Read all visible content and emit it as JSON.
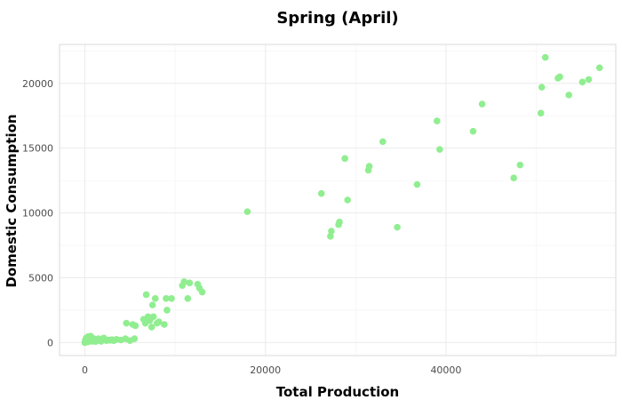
{
  "chart_data": {
    "type": "scatter",
    "title": "Spring (April)",
    "xlabel": "Total Production",
    "ylabel": "Domestic Consumption",
    "xlim": [
      -2800,
      58800
    ],
    "ylim": [
      -1000,
      23000
    ],
    "x_ticks": [
      0,
      20000,
      40000
    ],
    "y_ticks": [
      0,
      5000,
      10000,
      15000,
      20000
    ],
    "grid": true,
    "legend": "none",
    "point_color": "#90EE90",
    "series": [
      {
        "points": [
          [
            0,
            0
          ],
          [
            100,
            50
          ],
          [
            200,
            120
          ],
          [
            300,
            200
          ],
          [
            400,
            300
          ],
          [
            500,
            250
          ],
          [
            600,
            400
          ],
          [
            700,
            150
          ],
          [
            800,
            350
          ],
          [
            900,
            100
          ],
          [
            1000,
            300
          ],
          [
            1100,
            200
          ],
          [
            1200,
            80
          ],
          [
            1300,
            250
          ],
          [
            1400,
            150
          ],
          [
            1600,
            200
          ],
          [
            1800,
            100
          ],
          [
            2000,
            300
          ],
          [
            2200,
            250
          ],
          [
            2400,
            150
          ],
          [
            2600,
            200
          ],
          [
            2800,
            180
          ],
          [
            3000,
            220
          ],
          [
            3200,
            150
          ],
          [
            3500,
            250
          ],
          [
            4000,
            200
          ],
          [
            4500,
            300
          ],
          [
            5000,
            150
          ],
          [
            150,
            350
          ],
          [
            250,
            80
          ],
          [
            350,
            450
          ],
          [
            450,
            150
          ],
          [
            550,
            200
          ],
          [
            650,
            500
          ],
          [
            750,
            300
          ],
          [
            850,
            220
          ],
          [
            50,
            150
          ],
          [
            120,
            250
          ],
          [
            300,
            50
          ],
          [
            600,
            100
          ],
          [
            1500,
            300
          ],
          [
            2100,
            350
          ],
          [
            4600,
            1500
          ],
          [
            5300,
            1400
          ],
          [
            5500,
            300
          ],
          [
            5600,
            1300
          ],
          [
            6500,
            1800
          ],
          [
            6700,
            1500
          ],
          [
            6800,
            3700
          ],
          [
            7000,
            2000
          ],
          [
            7200,
            1700
          ],
          [
            7400,
            1200
          ],
          [
            7500,
            2900
          ],
          [
            7600,
            2000
          ],
          [
            7800,
            3400
          ],
          [
            8000,
            1500
          ],
          [
            8200,
            1600
          ],
          [
            8800,
            1400
          ],
          [
            9000,
            3400
          ],
          [
            9100,
            2500
          ],
          [
            9600,
            3400
          ],
          [
            10800,
            4400
          ],
          [
            11000,
            4700
          ],
          [
            11400,
            3400
          ],
          [
            11600,
            4600
          ],
          [
            12500,
            4500
          ],
          [
            12700,
            4200
          ],
          [
            13000,
            3900
          ],
          [
            18000,
            10100
          ],
          [
            26200,
            11500
          ],
          [
            27200,
            8200
          ],
          [
            27300,
            8600
          ],
          [
            28100,
            9100
          ],
          [
            28200,
            9300
          ],
          [
            28800,
            14200
          ],
          [
            29100,
            11000
          ],
          [
            31400,
            13300
          ],
          [
            31500,
            13600
          ],
          [
            33000,
            15500
          ],
          [
            34600,
            8900
          ],
          [
            36800,
            12200
          ],
          [
            39000,
            17100
          ],
          [
            39300,
            14900
          ],
          [
            43000,
            16300
          ],
          [
            44000,
            18400
          ],
          [
            47500,
            12700
          ],
          [
            48200,
            13700
          ],
          [
            50500,
            17700
          ],
          [
            50600,
            19700
          ],
          [
            51000,
            22000
          ],
          [
            52400,
            20400
          ],
          [
            52600,
            20500
          ],
          [
            53600,
            19100
          ],
          [
            55100,
            20100
          ],
          [
            55800,
            20300
          ],
          [
            57000,
            21200
          ]
        ]
      }
    ]
  }
}
